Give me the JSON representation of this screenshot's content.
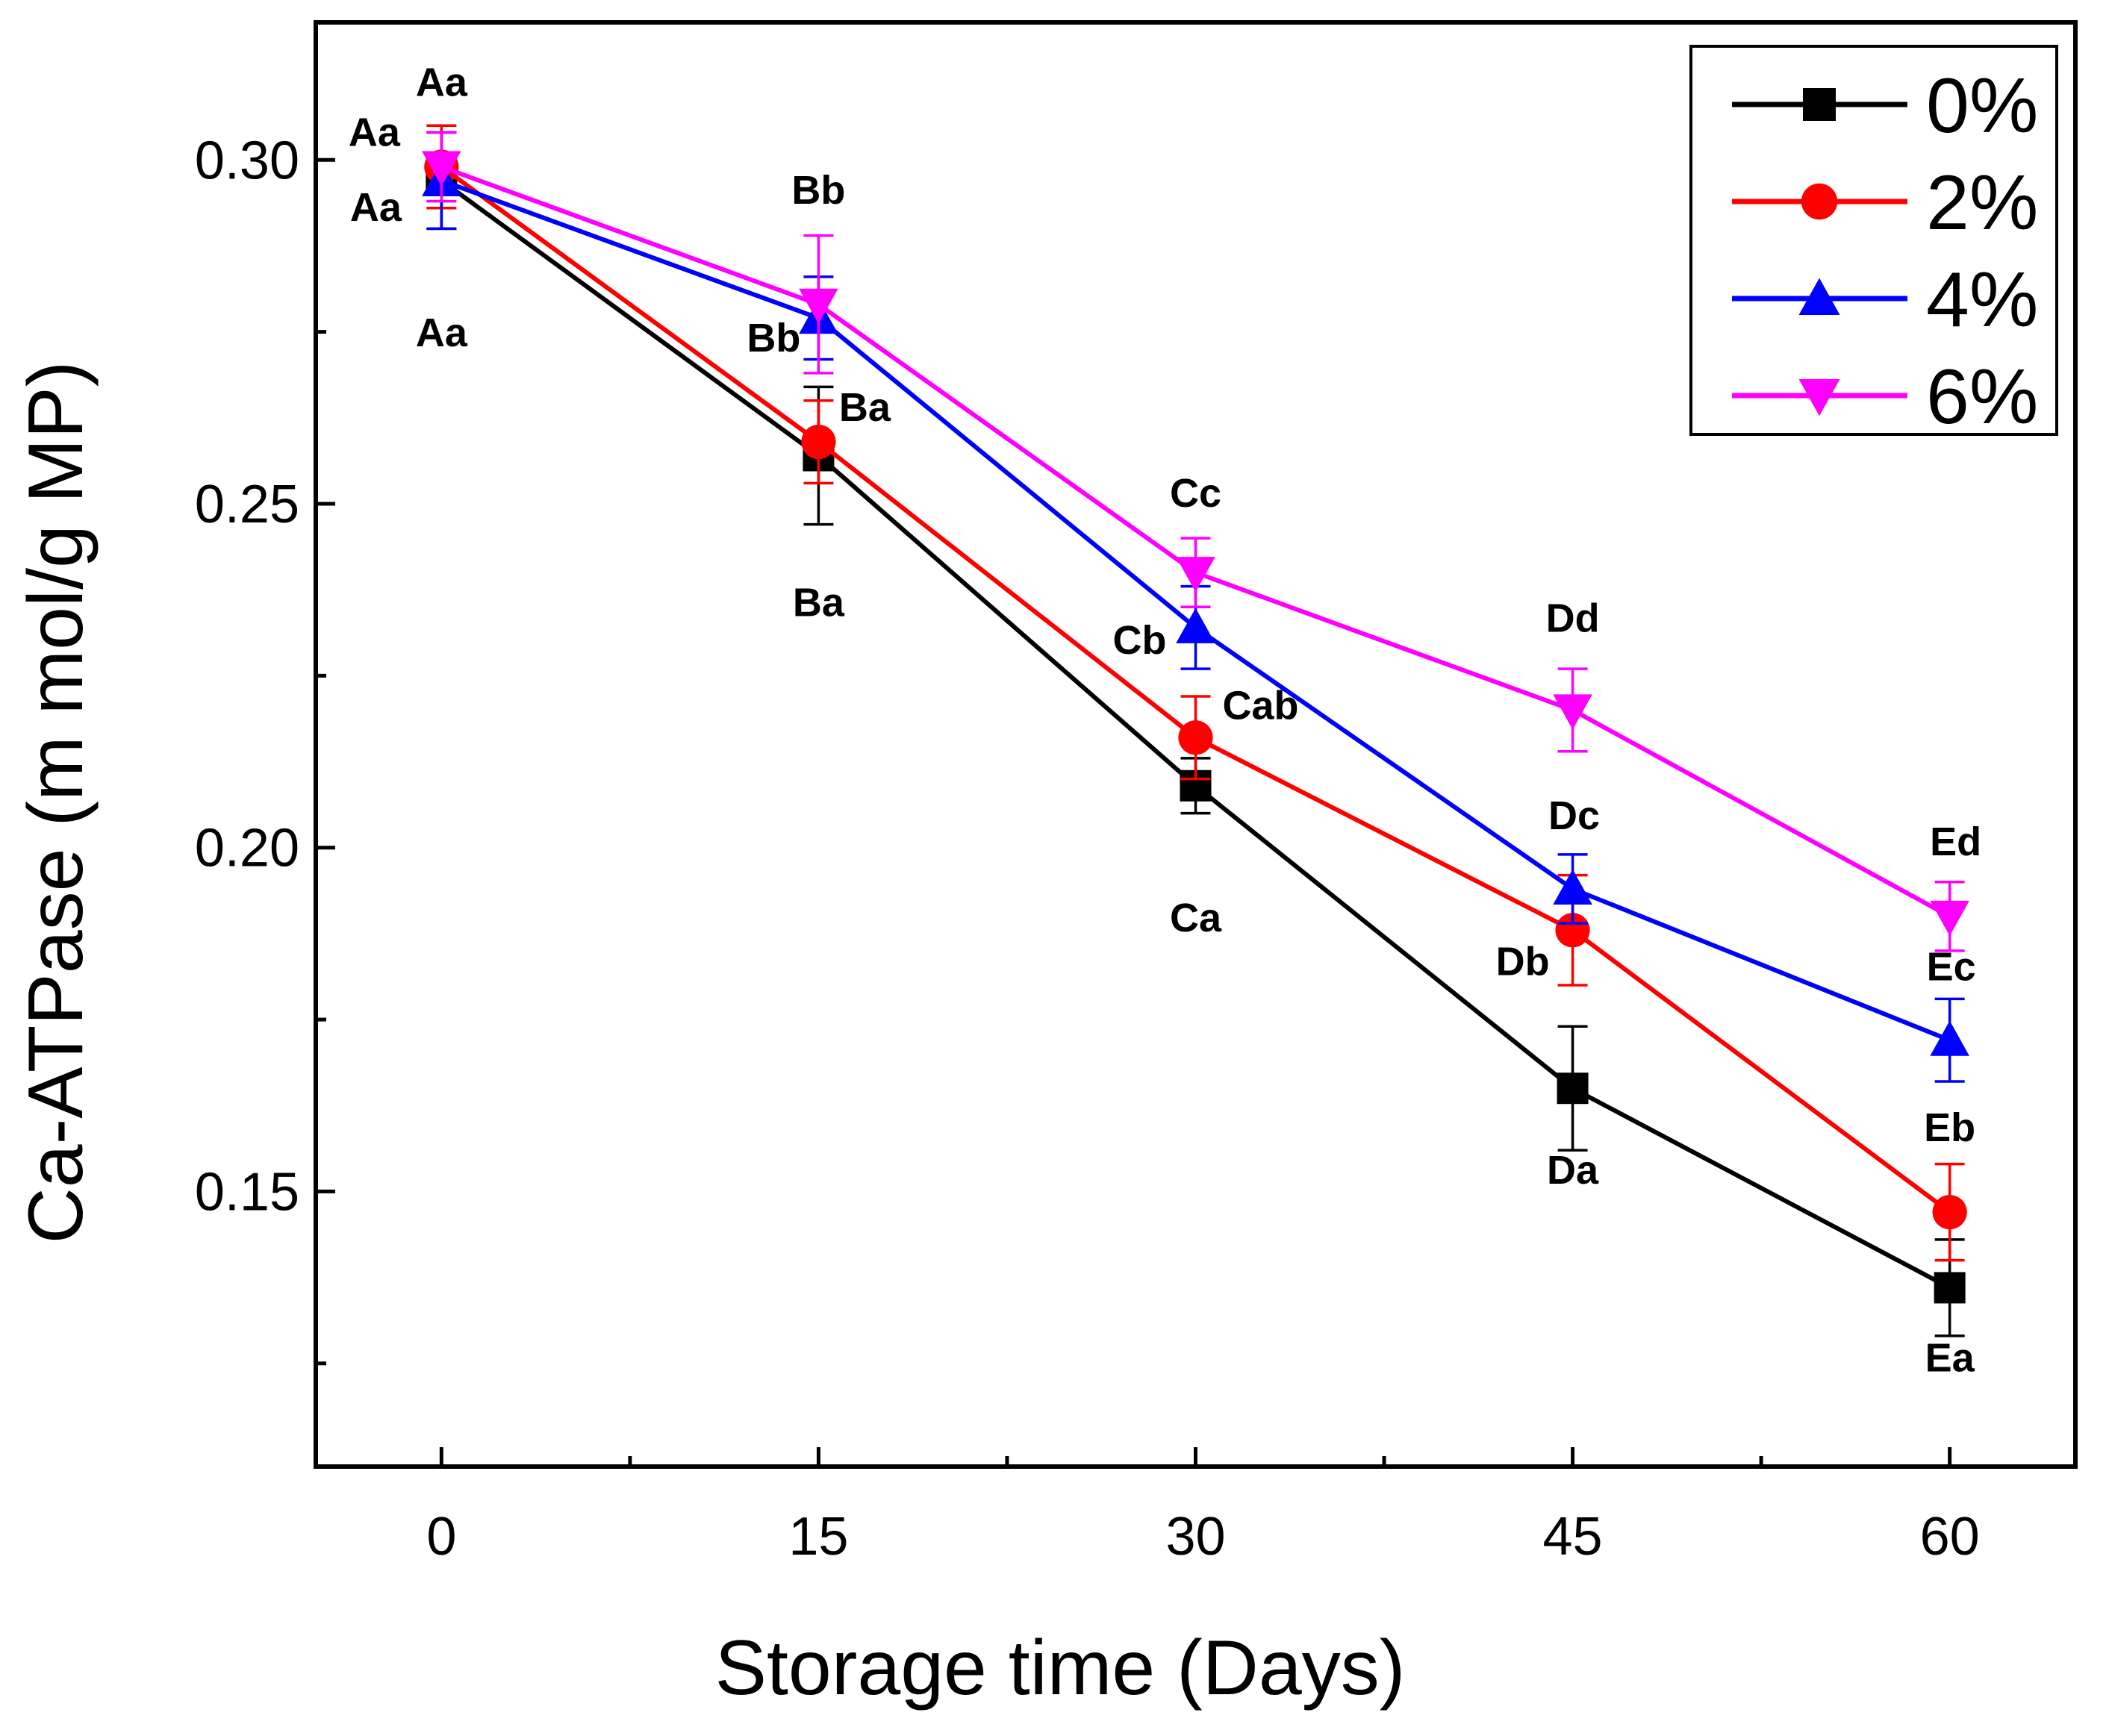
{
  "chart_data": {
    "type": "line",
    "title": "",
    "xlabel": "Storage time  (Days)",
    "ylabel": "Ca-ATPase (m mol/g MP)",
    "x": [
      0,
      15,
      30,
      45,
      60
    ],
    "xlim": [
      -5,
      65
    ],
    "ylim": [
      0.11,
      0.32
    ],
    "xticks": [
      0,
      15,
      30,
      45,
      60
    ],
    "xtick_labels": [
      "0",
      "15",
      "30",
      "45",
      "60"
    ],
    "yticks": [
      0.15,
      0.2,
      0.25,
      0.3
    ],
    "ytick_labels": [
      "0.15",
      "0.20",
      "0.25",
      "0.30"
    ],
    "legend_position": "top-right",
    "series": [
      {
        "name": "0%",
        "color": "#000000",
        "marker": "square",
        "values": [
          0.297,
          0.257,
          0.209,
          0.165,
          0.136
        ],
        "errors": [
          0.007,
          0.01,
          0.004,
          0.009,
          0.007
        ],
        "letters": [
          "Aa",
          "Ba",
          "Ca",
          "Da",
          "Ea"
        ]
      },
      {
        "name": "2%",
        "color": "#ff0000",
        "marker": "circle",
        "values": [
          0.299,
          0.259,
          0.216,
          0.188,
          0.147
        ],
        "errors": [
          0.006,
          0.006,
          0.006,
          0.008,
          0.007
        ],
        "letters": [
          "Aa",
          "Ba",
          "Cab",
          "Db",
          "Eb"
        ]
      },
      {
        "name": "4%",
        "color": "#0000ff",
        "marker": "triangle-up",
        "values": [
          0.297,
          0.277,
          0.232,
          0.194,
          0.172
        ],
        "errors": [
          0.007,
          0.006,
          0.006,
          0.005,
          0.006
        ],
        "letters": [
          "Aa",
          "Bb",
          "Cb",
          "Dc",
          "Ec"
        ]
      },
      {
        "name": "6%",
        "color": "#ff00ff",
        "marker": "triangle-down",
        "values": [
          0.299,
          0.279,
          0.24,
          0.22,
          0.19
        ],
        "errors": [
          0.005,
          0.01,
          0.005,
          0.006,
          0.005
        ],
        "letters": [
          "Aa",
          "Bb",
          "Cc",
          "Dd",
          "Ed"
        ]
      }
    ]
  }
}
